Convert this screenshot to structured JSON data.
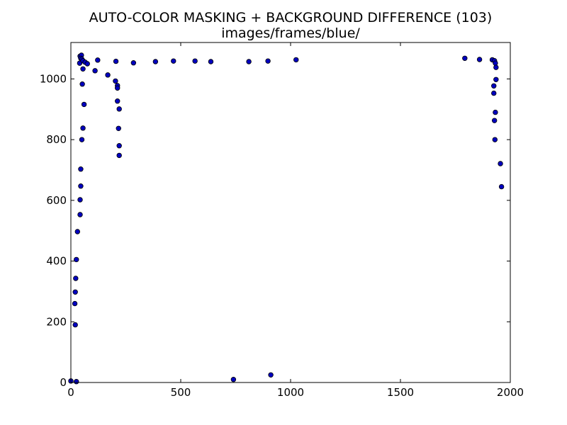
{
  "chart_data": {
    "type": "scatter",
    "title": "AUTO-COLOR MASKING + BACKGROUND DIFFERENCE (103)",
    "subtitle": "images/frames/blue/",
    "xlabel": "",
    "ylabel": "",
    "xlim": [
      0,
      2000
    ],
    "ylim": [
      0,
      1120
    ],
    "xticks": [
      0,
      500,
      1000,
      1500,
      2000
    ],
    "yticks": [
      0,
      200,
      400,
      600,
      800,
      1000
    ],
    "grid": false,
    "marker_color": "#0000bf",
    "marker_edge": "#000000",
    "points": [
      {
        "x": 0,
        "y": 5
      },
      {
        "x": 25,
        "y": 3
      },
      {
        "x": 740,
        "y": 10
      },
      {
        "x": 910,
        "y": 25
      },
      {
        "x": 20,
        "y": 190
      },
      {
        "x": 18,
        "y": 260
      },
      {
        "x": 20,
        "y": 298
      },
      {
        "x": 22,
        "y": 343
      },
      {
        "x": 25,
        "y": 405
      },
      {
        "x": 30,
        "y": 497
      },
      {
        "x": 42,
        "y": 553
      },
      {
        "x": 42,
        "y": 602
      },
      {
        "x": 45,
        "y": 647
      },
      {
        "x": 45,
        "y": 703
      },
      {
        "x": 50,
        "y": 800
      },
      {
        "x": 55,
        "y": 838
      },
      {
        "x": 60,
        "y": 916
      },
      {
        "x": 52,
        "y": 983
      },
      {
        "x": 55,
        "y": 1033
      },
      {
        "x": 40,
        "y": 1052
      },
      {
        "x": 42,
        "y": 1075
      },
      {
        "x": 48,
        "y": 1078
      },
      {
        "x": 45,
        "y": 1068
      },
      {
        "x": 50,
        "y": 1065
      },
      {
        "x": 55,
        "y": 1060
      },
      {
        "x": 65,
        "y": 1055
      },
      {
        "x": 75,
        "y": 1050
      },
      {
        "x": 110,
        "y": 1027
      },
      {
        "x": 122,
        "y": 1062
      },
      {
        "x": 168,
        "y": 1013
      },
      {
        "x": 205,
        "y": 1058
      },
      {
        "x": 203,
        "y": 993
      },
      {
        "x": 212,
        "y": 978
      },
      {
        "x": 212,
        "y": 970
      },
      {
        "x": 212,
        "y": 927
      },
      {
        "x": 220,
        "y": 901
      },
      {
        "x": 217,
        "y": 837
      },
      {
        "x": 220,
        "y": 780
      },
      {
        "x": 220,
        "y": 748
      },
      {
        "x": 285,
        "y": 1053
      },
      {
        "x": 385,
        "y": 1057
      },
      {
        "x": 467,
        "y": 1059
      },
      {
        "x": 565,
        "y": 1059
      },
      {
        "x": 637,
        "y": 1057
      },
      {
        "x": 810,
        "y": 1057
      },
      {
        "x": 897,
        "y": 1059
      },
      {
        "x": 1025,
        "y": 1063
      },
      {
        "x": 1793,
        "y": 1068
      },
      {
        "x": 1860,
        "y": 1064
      },
      {
        "x": 1918,
        "y": 1063
      },
      {
        "x": 1928,
        "y": 1060
      },
      {
        "x": 1932,
        "y": 1052
      },
      {
        "x": 1935,
        "y": 1038
      },
      {
        "x": 1935,
        "y": 998
      },
      {
        "x": 1925,
        "y": 977
      },
      {
        "x": 1925,
        "y": 953
      },
      {
        "x": 1932,
        "y": 890
      },
      {
        "x": 1928,
        "y": 863
      },
      {
        "x": 1930,
        "y": 800
      },
      {
        "x": 1955,
        "y": 721
      },
      {
        "x": 1960,
        "y": 645
      }
    ]
  }
}
